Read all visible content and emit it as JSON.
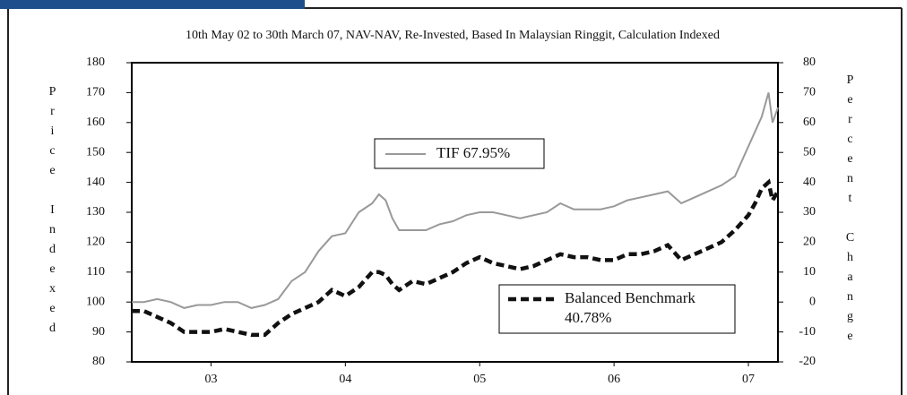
{
  "chart_data": {
    "type": "line",
    "title": "10th May 02 to 30th March 07, NAV-NAV, Re-Invested, Based In Malaysian Ringgit, Calculation Indexed",
    "ylabel": "Price Indexed",
    "y2label": "Percent Change",
    "x": [
      2.41,
      2.5,
      2.6,
      2.7,
      2.8,
      2.9,
      3.0,
      3.1,
      3.2,
      3.3,
      3.4,
      3.5,
      3.6,
      3.7,
      3.8,
      3.9,
      4.0,
      4.1,
      4.2,
      4.25,
      4.3,
      4.35,
      4.4,
      4.5,
      4.6,
      4.7,
      4.8,
      4.9,
      5.0,
      5.1,
      5.2,
      5.3,
      5.4,
      5.5,
      5.6,
      5.7,
      5.8,
      5.9,
      6.0,
      6.1,
      6.2,
      6.3,
      6.4,
      6.5,
      6.6,
      6.7,
      6.8,
      6.9,
      7.0,
      7.05,
      7.1,
      7.15,
      7.18,
      7.22
    ],
    "series": [
      {
        "name": "TIF 67.95%",
        "color": "#999999",
        "axis": "y",
        "values": [
          100,
          100,
          101,
          100,
          98,
          99,
          99,
          100,
          100,
          98,
          99,
          101,
          107,
          110,
          117,
          122,
          123,
          130,
          133,
          136,
          134,
          128,
          124,
          124,
          124,
          126,
          127,
          129,
          130,
          130,
          129,
          128,
          129,
          130,
          133,
          131,
          131,
          131,
          132,
          134,
          135,
          136,
          137,
          133,
          135,
          137,
          139,
          142,
          152,
          157,
          162,
          170,
          160,
          165
        ]
      },
      {
        "name": "Balanced Benchmark 40.78%",
        "color": "#111111",
        "axis": "y2",
        "values": [
          -3,
          -3,
          -5,
          -7,
          -10,
          -10,
          -10,
          -9,
          -10,
          -11,
          -11,
          -7,
          -4,
          -2,
          0,
          4,
          2,
          5,
          10,
          10,
          9,
          6,
          4,
          7,
          6,
          8,
          10,
          13,
          15,
          13,
          12,
          11,
          12,
          14,
          16,
          15,
          15,
          14,
          14,
          16,
          16,
          17,
          19,
          14,
          16,
          18,
          20,
          24,
          29,
          33,
          38,
          40,
          34,
          37
        ]
      }
    ],
    "xlim": [
      2.41,
      7.22
    ],
    "xticks": [
      {
        "value": 3,
        "label": "03"
      },
      {
        "value": 4,
        "label": "04"
      },
      {
        "value": 5,
        "label": "05"
      },
      {
        "value": 6,
        "label": "06"
      },
      {
        "value": 7,
        "label": "07"
      }
    ],
    "ylim": [
      80,
      180
    ],
    "yticks": [
      80,
      90,
      100,
      110,
      120,
      130,
      140,
      150,
      160,
      170,
      180
    ],
    "y2lim": [
      -20,
      80
    ],
    "y2ticks": [
      -20,
      -10,
      0,
      10,
      20,
      30,
      40,
      50,
      60,
      70,
      80
    ]
  }
}
